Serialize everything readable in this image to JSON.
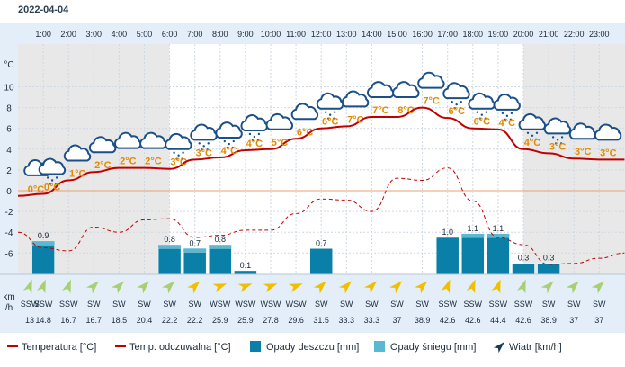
{
  "page": {
    "date": "2022-04-04"
  },
  "chart_data": {
    "type": "line",
    "hours": [
      "1:00",
      "2:00",
      "3:00",
      "4:00",
      "5:00",
      "6:00",
      "7:00",
      "8:00",
      "9:00",
      "10:00",
      "11:00",
      "12:00",
      "13:00",
      "14:00",
      "15:00",
      "16:00",
      "17:00",
      "18:00",
      "19:00",
      "20:00",
      "21:00",
      "22:00",
      "23:00"
    ],
    "x": [
      0,
      1,
      2,
      3,
      4,
      5,
      6,
      7,
      8,
      9,
      10,
      11,
      12,
      13,
      14,
      15,
      16,
      17,
      18,
      19,
      20,
      21,
      22,
      23,
      24
    ],
    "temperature": [
      -0.5,
      -0.3,
      1.0,
      1.8,
      2.2,
      2.2,
      2.1,
      3.0,
      3.2,
      3.9,
      4.0,
      5.0,
      6.0,
      6.2,
      7.1,
      7.1,
      8.0,
      7.0,
      6.0,
      5.9,
      4.0,
      3.6,
      3.1,
      3.0,
      3.0
    ],
    "feels_like": [
      -4.0,
      -5.5,
      -5.8,
      -3.5,
      -4.0,
      -2.8,
      -2.7,
      -4.5,
      -4.3,
      -3.8,
      -3.8,
      -2.2,
      -0.8,
      -0.9,
      -2.0,
      1.2,
      1.0,
      2.2,
      -1.0,
      -4.5,
      -5.2,
      -7.1,
      -7.0,
      -6.5,
      -6.0
    ],
    "conditions_temp_labels": [
      "0°C",
      "0°C",
      "1°C",
      "2°C",
      "2°C",
      "2°C",
      "3°C",
      "3°C",
      "4°C",
      "4°C",
      "5°C",
      "6°C",
      "6°C",
      "7°C",
      "7°C",
      "8°C",
      "7°C",
      "6°C",
      "6°C",
      "4°C",
      "4°C",
      "3°C",
      "3°C",
      "3°C"
    ],
    "rain_mm": [
      0,
      0.8,
      0,
      0,
      0,
      0,
      0.7,
      0.6,
      0.7,
      0.1,
      0,
      0,
      0.7,
      0,
      0,
      0,
      0,
      1.0,
      1.0,
      1.0,
      0.3,
      0.3,
      0,
      0,
      0
    ],
    "snow_mm": [
      0,
      0.1,
      0,
      0,
      0,
      0,
      0.1,
      0.1,
      0.1,
      0,
      0,
      0,
      0,
      0,
      0,
      0,
      0,
      0,
      0.1,
      0.1,
      0,
      0,
      0,
      0,
      0
    ],
    "precip_labels": [
      "",
      "0.9",
      "",
      "",
      "",
      "",
      "0.8",
      "0.7",
      "0.8",
      "0.1",
      "",
      "",
      "0.7",
      "",
      "",
      "",
      "",
      "1.0",
      "1.1",
      "1.1",
      "0.3",
      "0.3",
      "",
      "",
      ""
    ],
    "wind_dir": [
      "SSW",
      "SSW",
      "SSW",
      "SW",
      "SW",
      "SW",
      "SW",
      "SW",
      "WSW",
      "WSW",
      "WSW",
      "WSW",
      "SW",
      "SW",
      "SW",
      "SW",
      "SW",
      "SSW",
      "SSW",
      "SSW",
      "SSW",
      "SW",
      "SW",
      "SW",
      "SW"
    ],
    "wind_speed": [
      "13",
      "14.8",
      "16.7",
      "16.7",
      "18.5",
      "20.4",
      "22.2",
      "22.2",
      "25.9",
      "25.9",
      "27.8",
      "29.6",
      "31.5",
      "33.3",
      "33.3",
      "37",
      "38.9",
      "42.6",
      "42.6",
      "44.4",
      "42.6",
      "38.9",
      "37",
      "37",
      "37"
    ],
    "y_ticks": [
      "°C",
      "10",
      "8",
      "6",
      "4",
      "2",
      "0",
      "-2",
      "-4",
      "-6"
    ],
    "wind_unit": [
      "km",
      "/h"
    ],
    "legend": {
      "temp": "Temperatura [°C]",
      "feels": "Temp. odczuwalna [°C]",
      "rain": "Opady deszczu [mm]",
      "snow": "Opady śniegu [mm]",
      "wind": "Wiatr [km/h]"
    },
    "colors": {
      "temp": "#c00000",
      "feels": "#c00000",
      "rain": "#0a7fa8",
      "snow": "#5ab8d0",
      "zero_line": "#e8a070",
      "night_bg": "#e8e8e8",
      "day_bg": "#ffffff",
      "header_bg": "#e3eef8",
      "wind_arrow_day": "#f0c000",
      "wind_arrow_night": "#a8d070",
      "cond_icon": "#1a4f8a"
    },
    "icon_kinds": [
      "cloud-moon",
      "cloud-snow",
      "cloud",
      "cloud",
      "cloud",
      "cloud",
      "cloud-snow",
      "cloud-snow",
      "cloud-snow",
      "cloud-snow",
      "cloud",
      "cloud",
      "cloud-snow",
      "cloud",
      "cloud",
      "cloud",
      "cloud",
      "cloud-snow",
      "cloud-snow",
      "cloud-snow",
      "cloud-snow",
      "cloud-snow",
      "cloud",
      "cloud"
    ]
  }
}
